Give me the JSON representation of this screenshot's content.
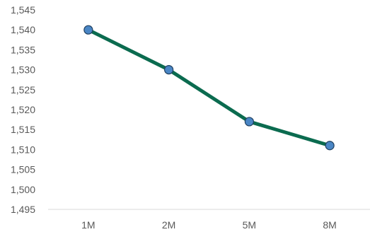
{
  "chart_data": {
    "type": "line",
    "categories": [
      "1M",
      "2M",
      "5M",
      "8M"
    ],
    "series": [
      {
        "values": [
          1540,
          1530,
          1517,
          1511
        ]
      }
    ],
    "ylim": [
      1495,
      1545
    ],
    "y_ticks": [
      1495,
      1500,
      1505,
      1510,
      1515,
      1520,
      1525,
      1530,
      1535,
      1540,
      1545
    ],
    "y_tick_labels": [
      "1,495",
      "1,500",
      "1,505",
      "1,510",
      "1,515",
      "1,520",
      "1,525",
      "1,530",
      "1,535",
      "1,540",
      "1,545"
    ],
    "title": "",
    "xlabel": "",
    "ylabel": "",
    "grid": false,
    "legend": "none",
    "colors": {
      "line": "#0b6b4f",
      "marker_fill": "#4a86c5",
      "marker_stroke": "#1f3f5f",
      "axis": "#d9d9d9",
      "tick_text": "#595959"
    }
  }
}
